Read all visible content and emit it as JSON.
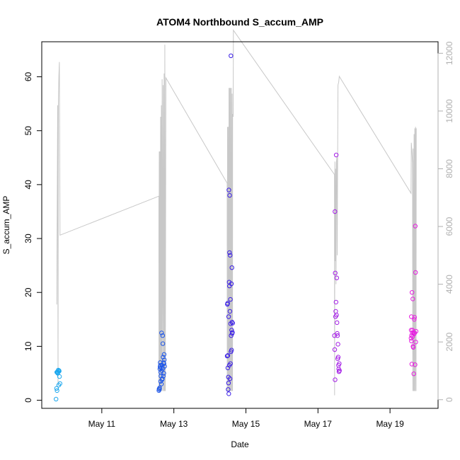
{
  "chart_data": {
    "type": "scatter",
    "title": "ATOM4 Northbound S_accum_AMP",
    "xlabel": "Date",
    "ylabel": "S_accum_AMP",
    "xlim": [
      "2013-05-09T08:00",
      "2013-05-20T08:00"
    ],
    "ylim": [
      -1.5,
      66.5
    ],
    "y2lim": [
      -300,
      12400
    ],
    "x_ticks": [
      {
        "date": "2013-05-11",
        "label": "May 11"
      },
      {
        "date": "2013-05-13",
        "label": "May 13"
      },
      {
        "date": "2013-05-15",
        "label": "May 15"
      },
      {
        "date": "2013-05-17",
        "label": "May 17"
      },
      {
        "date": "2013-05-19",
        "label": "May 19"
      }
    ],
    "y_ticks": [
      0,
      10,
      20,
      30,
      40,
      50,
      60
    ],
    "y2_ticks": [
      0,
      2000,
      4000,
      6000,
      8000,
      10000,
      12000
    ],
    "grid": false,
    "legend": "none",
    "secondary_line": {
      "color": "#c8c8c8",
      "points": [
        [
          "2013-05-09T18:00",
          3300
        ],
        [
          "2013-05-09T18:36",
          10200
        ],
        [
          "2013-05-09T18:50",
          500
        ],
        [
          "2013-05-09T19:05",
          10200
        ],
        [
          "2013-05-09T19:25",
          11200
        ],
        [
          "2013-05-09T19:45",
          11700
        ],
        [
          "2013-05-09T20:10",
          5700
        ],
        [
          "2013-05-12T14:00",
          7050
        ],
        [
          "2013-05-12T14:05",
          300
        ],
        [
          "2013-05-12T14:15",
          8600
        ],
        [
          "2013-05-12T14:30",
          300
        ],
        [
          "2013-05-12T14:40",
          8600
        ],
        [
          "2013-05-12T15:00",
          300
        ],
        [
          "2013-05-12T15:10",
          9800
        ],
        [
          "2013-05-12T15:30",
          300
        ],
        [
          "2013-05-12T15:40",
          10200
        ],
        [
          "2013-05-12T16:00",
          300
        ],
        [
          "2013-05-12T16:10",
          11100
        ],
        [
          "2013-05-12T16:40",
          300
        ],
        [
          "2013-05-12T16:50",
          10900
        ],
        [
          "2013-05-12T17:20",
          300
        ],
        [
          "2013-05-12T17:30",
          11300
        ],
        [
          "2013-05-12T17:50",
          300
        ],
        [
          "2013-05-12T18:00",
          12300
        ],
        [
          "2013-05-12T18:20",
          300
        ],
        [
          "2013-05-12T18:40",
          11150
        ],
        [
          "2013-05-14T11:30",
          7500
        ],
        [
          "2013-05-14T11:35",
          300
        ],
        [
          "2013-05-14T11:45",
          9450
        ],
        [
          "2013-05-14T12:05",
          300
        ],
        [
          "2013-05-14T12:15",
          9450
        ],
        [
          "2013-05-14T12:35",
          300
        ],
        [
          "2013-05-14T12:45",
          10800
        ],
        [
          "2013-05-14T13:05",
          300
        ],
        [
          "2013-05-14T13:15",
          10800
        ],
        [
          "2013-05-14T13:35",
          300
        ],
        [
          "2013-05-14T13:45",
          10800
        ],
        [
          "2013-05-14T14:10",
          300
        ],
        [
          "2013-05-14T14:20",
          10800
        ],
        [
          "2013-05-14T14:40",
          300
        ],
        [
          "2013-05-14T14:50",
          10600
        ],
        [
          "2013-05-14T15:05",
          300
        ],
        [
          "2013-05-14T15:10",
          9900
        ],
        [
          "2013-05-14T15:30",
          9800
        ],
        [
          "2013-05-14T15:40",
          12800
        ],
        [
          "2013-05-17T11:00",
          7800
        ],
        [
          "2013-05-17T11:05",
          150
        ],
        [
          "2013-05-17T11:15",
          8250
        ],
        [
          "2013-05-17T11:30",
          4800
        ],
        [
          "2013-05-17T11:40",
          8000
        ],
        [
          "2013-05-17T12:00",
          4000
        ],
        [
          "2013-05-17T12:15",
          8200
        ],
        [
          "2013-05-17T12:35",
          8400
        ],
        [
          "2013-05-17T12:50",
          5000
        ],
        [
          "2013-05-17T13:10",
          8900
        ],
        [
          "2013-05-17T13:20",
          10900
        ],
        [
          "2013-05-17T13:50",
          11000
        ],
        [
          "2013-05-17T14:10",
          11200
        ],
        [
          "2013-05-19T14:00",
          7150
        ],
        [
          "2013-05-19T14:10",
          8900
        ],
        [
          "2013-05-19T14:40",
          8550
        ],
        [
          "2013-05-19T15:00",
          8200
        ],
        [
          "2013-05-19T15:10",
          300
        ],
        [
          "2013-05-19T15:25",
          8700
        ],
        [
          "2013-05-19T15:45",
          300
        ],
        [
          "2013-05-19T16:00",
          9200
        ],
        [
          "2013-05-19T16:15",
          300
        ],
        [
          "2013-05-19T16:30",
          9400
        ],
        [
          "2013-05-19T16:45",
          300
        ],
        [
          "2013-05-19T17:00",
          9450
        ],
        [
          "2013-05-19T17:20",
          300
        ],
        [
          "2013-05-19T17:30",
          9400
        ]
      ]
    },
    "series": [
      {
        "color": "#1ea8ee",
        "points": [
          [
            "2013-05-09T17:30",
            0.2
          ],
          [
            "2013-05-09T17:50",
            2.2
          ],
          [
            "2013-05-09T18:10",
            1.8
          ],
          [
            "2013-05-09T18:00",
            5.2
          ],
          [
            "2013-05-09T18:30",
            5.3
          ],
          [
            "2013-05-09T18:50",
            5.1
          ],
          [
            "2013-05-09T19:10",
            5.4
          ],
          [
            "2013-05-09T19:30",
            5.5
          ],
          [
            "2013-05-09T18:40",
            5.0
          ],
          [
            "2013-05-09T19:00",
            5.6
          ],
          [
            "2013-05-09T19:20",
            2.8
          ],
          [
            "2013-05-09T19:50",
            4.4
          ],
          [
            "2013-05-09T20:10",
            3.1
          ],
          [
            "2013-05-09T19:40",
            5.4
          ],
          [
            "2013-05-09T18:20",
            5.2
          ]
        ]
      },
      {
        "color": "#1e56e8",
        "points": [
          [
            "2013-05-12T14:00",
            1.8
          ],
          [
            "2013-05-12T14:10",
            2.1
          ],
          [
            "2013-05-12T14:20",
            2.0
          ],
          [
            "2013-05-12T14:30",
            2.3
          ],
          [
            "2013-05-12T14:40",
            5.8
          ],
          [
            "2013-05-12T14:50",
            6.2
          ],
          [
            "2013-05-12T15:00",
            6.5
          ],
          [
            "2013-05-12T15:10",
            3.5
          ],
          [
            "2013-05-12T15:20",
            4.5
          ],
          [
            "2013-05-12T15:30",
            6.0
          ],
          [
            "2013-05-12T15:40",
            3.0
          ],
          [
            "2013-05-12T15:50",
            12.5
          ],
          [
            "2013-05-12T16:00",
            5.5
          ],
          [
            "2013-05-12T16:10",
            6.5
          ],
          [
            "2013-05-12T16:20",
            4.0
          ],
          [
            "2013-05-12T16:30",
            12.0
          ],
          [
            "2013-05-12T16:40",
            10.5
          ],
          [
            "2013-05-12T16:50",
            8.0
          ],
          [
            "2013-05-12T17:00",
            4.5
          ],
          [
            "2013-05-12T17:10",
            7.0
          ],
          [
            "2013-05-12T17:20",
            5.0
          ],
          [
            "2013-05-12T17:30",
            8.5
          ],
          [
            "2013-05-12T17:40",
            7.5
          ],
          [
            "2013-05-12T17:50",
            6.3
          ],
          [
            "2013-05-12T14:55",
            7.0
          ],
          [
            "2013-05-12T15:15",
            5.2
          ],
          [
            "2013-05-12T16:05",
            3.8
          ],
          [
            "2013-05-12T17:25",
            6.8
          ],
          [
            "2013-05-12T16:45",
            5.9
          ]
        ]
      },
      {
        "color": "#3a1ee6",
        "points": [
          [
            "2013-05-14T11:30",
            8.2
          ],
          [
            "2013-05-14T11:40",
            17.8
          ],
          [
            "2013-05-14T11:50",
            18.0
          ],
          [
            "2013-05-14T12:00",
            8.3
          ],
          [
            "2013-05-14T12:10",
            2.0
          ],
          [
            "2013-05-14T12:20",
            4.3
          ],
          [
            "2013-05-14T12:30",
            15.5
          ],
          [
            "2013-05-14T12:35",
            1.2
          ],
          [
            "2013-05-14T12:40",
            39.0
          ],
          [
            "2013-05-14T12:50",
            21.9
          ],
          [
            "2013-05-14T13:00",
            21.2
          ],
          [
            "2013-05-14T13:05",
            27.4
          ],
          [
            "2013-05-14T13:10",
            38.0
          ],
          [
            "2013-05-14T13:20",
            16.5
          ],
          [
            "2013-05-14T13:30",
            26.9
          ],
          [
            "2013-05-14T13:40",
            18.7
          ],
          [
            "2013-05-14T13:50",
            14.2
          ],
          [
            "2013-05-14T14:00",
            63.9
          ],
          [
            "2013-05-14T14:10",
            12.0
          ],
          [
            "2013-05-14T14:20",
            21.6
          ],
          [
            "2013-05-14T14:30",
            13.0
          ],
          [
            "2013-05-14T14:40",
            24.6
          ],
          [
            "2013-05-14T14:50",
            12.4
          ],
          [
            "2013-05-14T15:00",
            12.6
          ],
          [
            "2013-05-14T15:10",
            14.3
          ],
          [
            "2013-05-14T12:25",
            3.2
          ],
          [
            "2013-05-14T12:55",
            6.5
          ],
          [
            "2013-05-14T13:25",
            4.0
          ],
          [
            "2013-05-14T13:45",
            6.8
          ],
          [
            "2013-05-14T14:05",
            9.0
          ],
          [
            "2013-05-14T14:25",
            9.3
          ],
          [
            "2013-05-14T11:55",
            6.0
          ],
          [
            "2013-05-14T14:45",
            14.5
          ]
        ]
      },
      {
        "color": "#a41ee6",
        "points": [
          [
            "2013-05-17T11:00",
            12.0
          ],
          [
            "2013-05-17T11:10",
            9.4
          ],
          [
            "2013-05-17T11:20",
            35.0
          ],
          [
            "2013-05-17T11:25",
            3.8
          ],
          [
            "2013-05-17T11:30",
            23.6
          ],
          [
            "2013-05-17T11:40",
            15.5
          ],
          [
            "2013-05-17T11:50",
            16.5
          ],
          [
            "2013-05-17T12:00",
            18.2
          ],
          [
            "2013-05-17T12:10",
            45.5
          ],
          [
            "2013-05-17T12:20",
            15.8
          ],
          [
            "2013-05-17T12:30",
            22.7
          ],
          [
            "2013-05-17T12:40",
            14.4
          ],
          [
            "2013-05-17T12:50",
            12.4
          ],
          [
            "2013-05-17T13:00",
            12.0
          ],
          [
            "2013-05-17T13:10",
            7.7
          ],
          [
            "2013-05-17T13:20",
            10.4
          ],
          [
            "2013-05-17T13:30",
            8.0
          ],
          [
            "2013-05-17T13:40",
            6.5
          ],
          [
            "2013-05-17T13:50",
            5.8
          ],
          [
            "2013-05-17T14:00",
            5.3
          ],
          [
            "2013-05-17T14:10",
            6.8
          ],
          [
            "2013-05-17T14:20",
            5.5
          ]
        ]
      },
      {
        "color": "#e61ee0",
        "points": [
          [
            "2013-05-19T14:00",
            11.5
          ],
          [
            "2013-05-19T14:05",
            13.0
          ],
          [
            "2013-05-19T14:10",
            15.5
          ],
          [
            "2013-05-19T14:20",
            12.0
          ],
          [
            "2013-05-19T14:30",
            6.7
          ],
          [
            "2013-05-19T14:40",
            20.0
          ],
          [
            "2013-05-19T14:50",
            12.5
          ],
          [
            "2013-05-19T15:00",
            13.0
          ],
          [
            "2013-05-19T15:10",
            18.8
          ],
          [
            "2013-05-19T15:20",
            10.0
          ],
          [
            "2013-05-19T15:30",
            9.8
          ],
          [
            "2013-05-19T15:40",
            12.6
          ],
          [
            "2013-05-19T15:50",
            4.9
          ],
          [
            "2013-05-19T16:00",
            12.3
          ],
          [
            "2013-05-19T16:10",
            15.0
          ],
          [
            "2013-05-19T16:20",
            15.4
          ],
          [
            "2013-05-19T16:30",
            12.5
          ],
          [
            "2013-05-19T16:40",
            6.6
          ],
          [
            "2013-05-19T16:50",
            32.3
          ],
          [
            "2013-05-19T17:00",
            23.7
          ],
          [
            "2013-05-19T17:10",
            10.8
          ],
          [
            "2013-05-19T17:20",
            12.8
          ],
          [
            "2013-05-19T14:15",
            11.0
          ],
          [
            "2013-05-19T15:05",
            11.8
          ]
        ]
      }
    ]
  }
}
